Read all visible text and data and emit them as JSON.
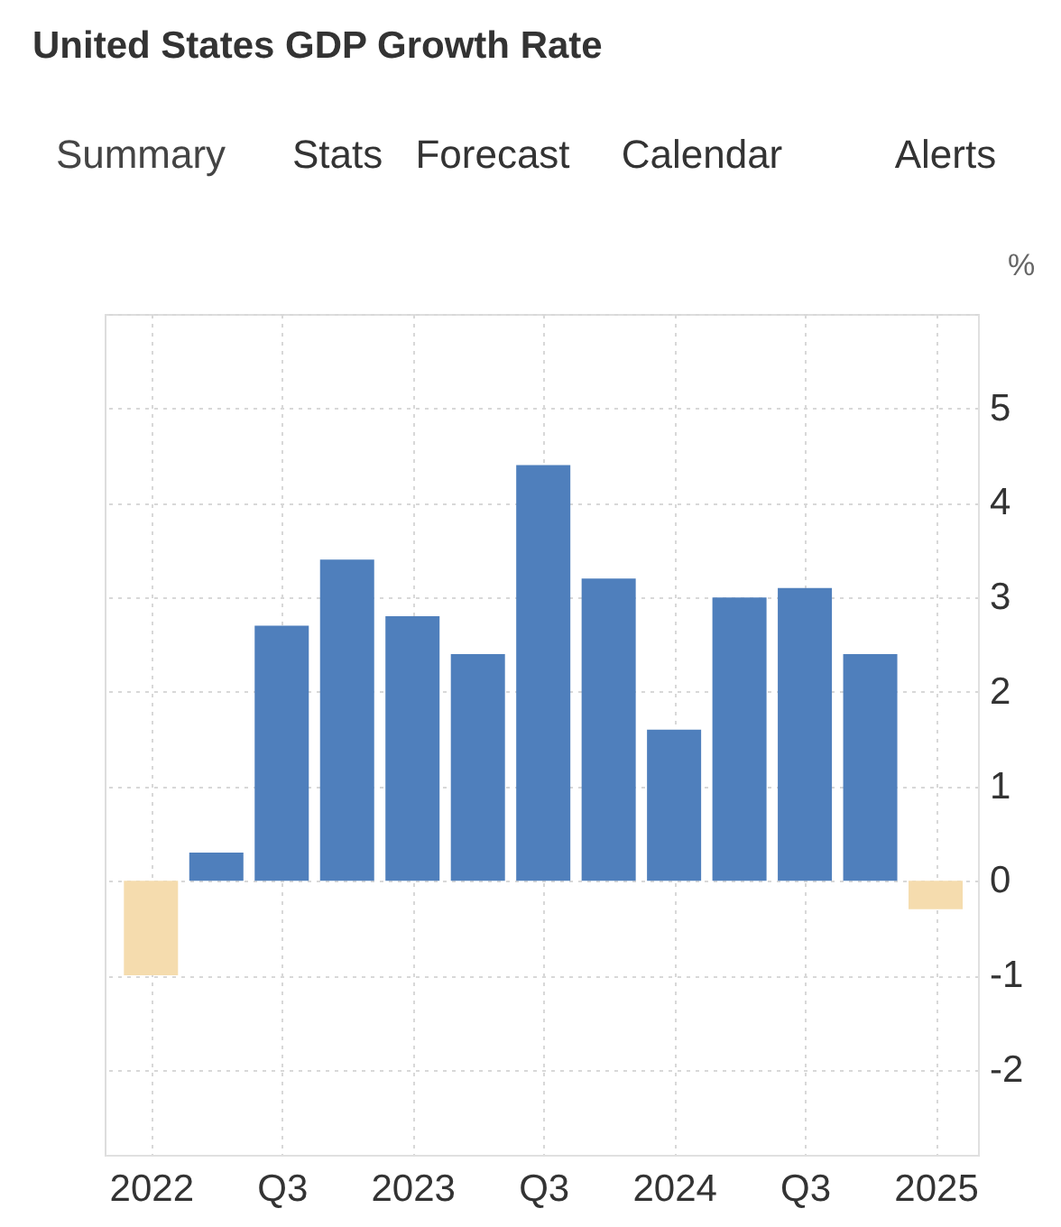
{
  "chart_data": {
    "type": "bar",
    "title": "United States GDP Growth Rate",
    "annotations": [
      "Summary",
      "Stats",
      "Forecast",
      "Calendar",
      "Alerts"
    ],
    "ylabel": "%",
    "categories": [
      "2022",
      null,
      "Q3",
      null,
      "2023",
      null,
      "Q3",
      null,
      "2024",
      null,
      "Q3",
      null,
      "2025"
    ],
    "values": [
      -1.0,
      0.3,
      2.7,
      3.4,
      2.8,
      2.4,
      4.4,
      3.2,
      1.6,
      3.0,
      3.1,
      2.4,
      -0.3
    ],
    "colors": [
      "#f5dcae",
      "#4f7fbc",
      "#4f7fbc",
      "#4f7fbc",
      "#4f7fbc",
      "#4f7fbc",
      "#4f7fbc",
      "#4f7fbc",
      "#4f7fbc",
      "#4f7fbc",
      "#4f7fbc",
      "#4f7fbc",
      "#f5dcae"
    ],
    "ylim": [
      -2.9,
      6
    ],
    "yticks": [
      -2,
      -1,
      0,
      1,
      2,
      3,
      4,
      5,
      {
        "value": 6,
        "label": null
      }
    ],
    "grid": true,
    "legend": false
  }
}
